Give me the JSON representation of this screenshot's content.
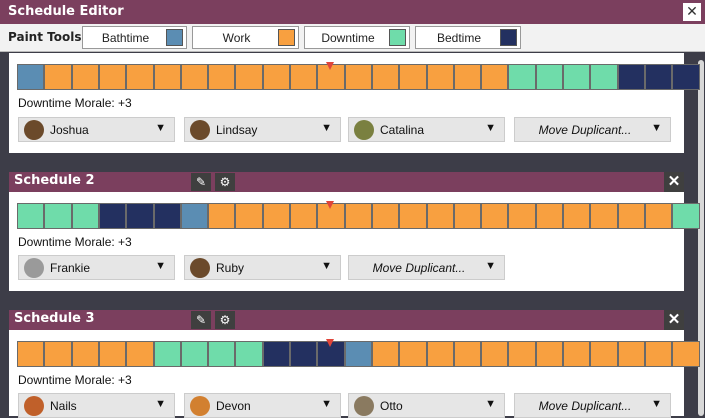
{
  "window": {
    "title": "Schedule Editor"
  },
  "toolbar": {
    "label": "Paint Tools:",
    "tools": [
      {
        "name": "Bathtime",
        "color": "#5b8db3"
      },
      {
        "name": "Work",
        "color": "#f8a040"
      },
      {
        "name": "Downtime",
        "color": "#6fdcaa"
      },
      {
        "name": "Bedtime",
        "color": "#233060"
      }
    ]
  },
  "colors": {
    "header": "#7b3f5e",
    "bathtime": "#5b8db3",
    "work": "#f8a040",
    "downtime": "#6fdcaa",
    "bedtime": "#233060",
    "marker": "#e0453a"
  },
  "schedules": [
    {
      "title": "",
      "blocks": [
        "bathtime",
        "work",
        "work",
        "work",
        "work",
        "work",
        "work",
        "work",
        "work",
        "work",
        "work",
        "work",
        "work",
        "work",
        "work",
        "work",
        "work",
        "work",
        "downtime",
        "downtime",
        "downtime",
        "downtime",
        "bedtime",
        "bedtime",
        "bedtime"
      ],
      "marker_index": 11,
      "morale": "Downtime Morale: +3",
      "duplicants": [
        {
          "name": "Joshua",
          "avatar": "avatar-icon",
          "color": "#6b4a2b"
        },
        {
          "name": "Lindsay",
          "avatar": "avatar-icon",
          "color": "#6b4a2b"
        },
        {
          "name": "Catalina",
          "avatar": "avatar-icon",
          "color": "#7a8040"
        }
      ],
      "move_label": "Move Duplicant..."
    },
    {
      "title": "Schedule 2",
      "blocks": [
        "downtime",
        "downtime",
        "downtime",
        "bedtime",
        "bedtime",
        "bedtime",
        "bathtime",
        "work",
        "work",
        "work",
        "work",
        "work",
        "work",
        "work",
        "work",
        "work",
        "work",
        "work",
        "work",
        "work",
        "work",
        "work",
        "work",
        "work",
        "downtime"
      ],
      "marker_index": 11,
      "morale": "Downtime Morale: +3",
      "duplicants": [
        {
          "name": "Frankie",
          "avatar": "avatar-icon",
          "color": "#9a9a9a"
        },
        {
          "name": "Ruby",
          "avatar": "avatar-icon",
          "color": "#6b4a2b"
        }
      ],
      "move_label": "Move Duplicant..."
    },
    {
      "title": "Schedule 3",
      "blocks": [
        "work",
        "work",
        "work",
        "work",
        "work",
        "downtime",
        "downtime",
        "downtime",
        "downtime",
        "bedtime",
        "bedtime",
        "bedtime",
        "bathtime",
        "work",
        "work",
        "work",
        "work",
        "work",
        "work",
        "work",
        "work",
        "work",
        "work",
        "work",
        "work"
      ],
      "marker_index": 11,
      "morale": "Downtime Morale: +3",
      "duplicants": [
        {
          "name": "Nails",
          "avatar": "avatar-icon",
          "color": "#c0602a"
        },
        {
          "name": "Devon",
          "avatar": "avatar-icon",
          "color": "#d28030"
        },
        {
          "name": "Otto",
          "avatar": "avatar-icon",
          "color": "#8a7a60"
        }
      ],
      "move_label": "Move Duplicant..."
    }
  ]
}
